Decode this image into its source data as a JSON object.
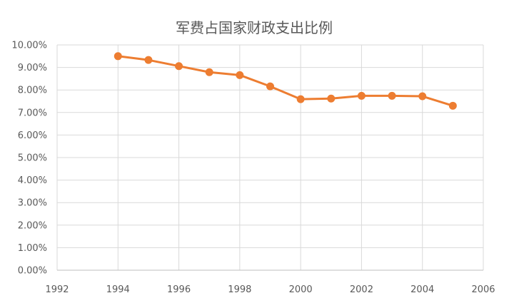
{
  "chart_data": {
    "type": "scatter",
    "title": "军费占国家财政支出比例",
    "xlabel": "",
    "ylabel": "",
    "xlim": [
      1992,
      2006
    ],
    "ylim": [
      0,
      0.1
    ],
    "x_ticks": [
      1992,
      1994,
      1996,
      1998,
      2000,
      2002,
      2004,
      2006
    ],
    "x_tick_labels": [
      "1992",
      "1994",
      "1996",
      "1998",
      "2000",
      "2002",
      "2004",
      "2006"
    ],
    "y_ticks": [
      0,
      0.01,
      0.02,
      0.03,
      0.04,
      0.05,
      0.06,
      0.07,
      0.08,
      0.09,
      0.1
    ],
    "y_tick_labels": [
      "0.00%",
      "1.00%",
      "2.00%",
      "3.00%",
      "4.00%",
      "5.00%",
      "6.00%",
      "7.00%",
      "8.00%",
      "9.00%",
      "10.00%"
    ],
    "grid": true,
    "legend": "none",
    "series": [
      {
        "color": "#ED7D31",
        "x": [
          1994,
          1995,
          1996,
          1997,
          1998,
          1999,
          2000,
          2001,
          2002,
          2003,
          2004,
          2005
        ],
        "y": [
          0.095,
          0.0933,
          0.0906,
          0.0879,
          0.0866,
          0.0816,
          0.0759,
          0.0762,
          0.0774,
          0.0774,
          0.0772,
          0.073
        ]
      }
    ]
  }
}
